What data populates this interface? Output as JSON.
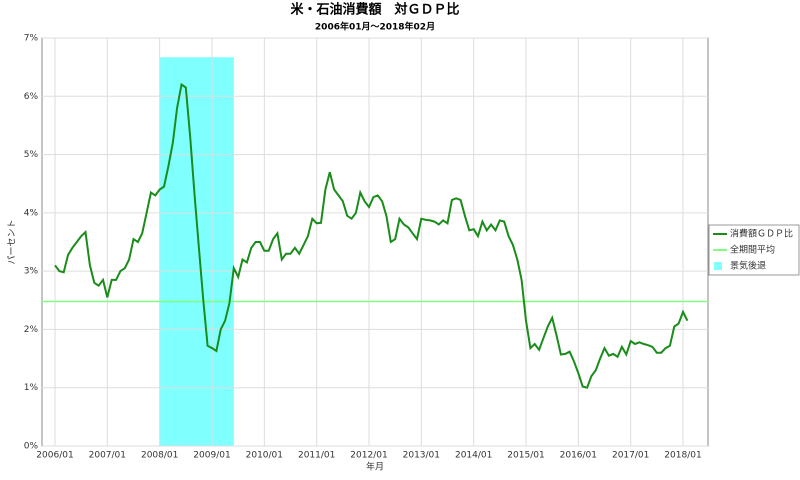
{
  "chart_data": {
    "type": "line",
    "title": "米・石油消費額　対ＧＤＰ比",
    "subtitle": "2006年01月～2018年02月",
    "xlabel": "年月",
    "ylabel": "パーセント",
    "x": [
      "2006/01",
      "2006/02",
      "2006/03",
      "2006/04",
      "2006/05",
      "2006/06",
      "2006/07",
      "2006/08",
      "2006/09",
      "2006/10",
      "2006/11",
      "2006/12",
      "2007/01",
      "2007/02",
      "2007/03",
      "2007/04",
      "2007/05",
      "2007/06",
      "2007/07",
      "2007/08",
      "2007/09",
      "2007/10",
      "2007/11",
      "2007/12",
      "2008/01",
      "2008/02",
      "2008/03",
      "2008/04",
      "2008/05",
      "2008/06",
      "2008/07",
      "2008/08",
      "2008/09",
      "2008/10",
      "2008/11",
      "2008/12",
      "2009/01",
      "2009/02",
      "2009/03",
      "2009/04",
      "2009/05",
      "2009/06",
      "2009/07",
      "2009/08",
      "2009/09",
      "2009/10",
      "2009/11",
      "2009/12",
      "2010/01",
      "2010/02",
      "2010/03",
      "2010/04",
      "2010/05",
      "2010/06",
      "2010/07",
      "2010/08",
      "2010/09",
      "2010/10",
      "2010/11",
      "2010/12",
      "2011/01",
      "2011/02",
      "2011/03",
      "2011/04",
      "2011/05",
      "2011/06",
      "2011/07",
      "2011/08",
      "2011/09",
      "2011/10",
      "2011/11",
      "2011/12",
      "2012/01",
      "2012/02",
      "2012/03",
      "2012/04",
      "2012/05",
      "2012/06",
      "2012/07",
      "2012/08",
      "2012/09",
      "2012/10",
      "2012/11",
      "2012/12",
      "2013/01",
      "2013/02",
      "2013/03",
      "2013/04",
      "2013/05",
      "2013/06",
      "2013/07",
      "2013/08",
      "2013/09",
      "2013/10",
      "2013/11",
      "2013/12",
      "2014/01",
      "2014/02",
      "2014/03",
      "2014/04",
      "2014/05",
      "2014/06",
      "2014/07",
      "2014/08",
      "2014/09",
      "2014/10",
      "2014/11",
      "2014/12",
      "2015/01",
      "2015/02",
      "2015/03",
      "2015/04",
      "2015/05",
      "2015/06",
      "2015/07",
      "2015/08",
      "2015/09",
      "2015/10",
      "2015/11",
      "2015/12",
      "2016/01",
      "2016/02",
      "2016/03",
      "2016/04",
      "2016/05",
      "2016/06",
      "2016/07",
      "2016/08",
      "2016/09",
      "2016/10",
      "2016/11",
      "2016/12",
      "2017/01",
      "2017/02",
      "2017/03",
      "2017/04",
      "2017/05",
      "2017/06",
      "2017/07",
      "2017/08",
      "2017/09",
      "2017/10",
      "2017/11",
      "2017/12",
      "2018/01",
      "2018/02"
    ],
    "series": [
      {
        "name": "消費額ＧＤＰ比",
        "color": "#1a8c1a",
        "values": [
          3.1,
          3.0,
          2.98,
          3.28,
          3.4,
          3.5,
          3.6,
          3.67,
          3.1,
          2.8,
          2.75,
          2.85,
          2.55,
          2.85,
          2.85,
          3.0,
          3.05,
          3.2,
          3.55,
          3.5,
          3.65,
          4.0,
          4.35,
          4.3,
          4.4,
          4.45,
          4.8,
          5.2,
          5.8,
          6.2,
          6.15,
          5.3,
          4.3,
          3.4,
          2.5,
          1.72,
          1.68,
          1.63,
          2.0,
          2.15,
          2.45,
          3.05,
          2.9,
          3.2,
          3.15,
          3.4,
          3.5,
          3.5,
          3.35,
          3.35,
          3.55,
          3.65,
          3.2,
          3.3,
          3.3,
          3.4,
          3.3,
          3.45,
          3.6,
          3.9,
          3.82,
          3.83,
          4.4,
          4.7,
          4.4,
          4.3,
          4.2,
          3.95,
          3.9,
          4.0,
          4.35,
          4.2,
          4.1,
          4.27,
          4.3,
          4.2,
          3.95,
          3.5,
          3.55,
          3.9,
          3.8,
          3.75,
          3.65,
          3.55,
          3.9,
          3.88,
          3.87,
          3.85,
          3.8,
          3.87,
          3.82,
          4.22,
          4.25,
          4.22,
          3.95,
          3.7,
          3.72,
          3.6,
          3.85,
          3.7,
          3.8,
          3.7,
          3.87,
          3.85,
          3.6,
          3.45,
          3.2,
          2.85,
          2.15,
          1.68,
          1.75,
          1.65,
          1.85,
          2.05,
          2.2,
          1.9,
          1.57,
          1.58,
          1.62,
          1.45,
          1.25,
          1.02,
          1.0,
          1.2,
          1.3,
          1.5,
          1.68,
          1.55,
          1.58,
          1.53,
          1.7,
          1.57,
          1.8,
          1.75,
          1.78,
          1.75,
          1.73,
          1.7,
          1.6,
          1.6,
          1.68,
          1.72,
          2.05,
          2.1,
          2.3,
          2.15
        ]
      }
    ],
    "average": {
      "name": "全期間平均",
      "color": "#80ff80",
      "value": 2.48
    },
    "recession": {
      "name": "景気後退",
      "color": "#80ffff",
      "start": "2008/01",
      "end": "2009/06",
      "value": 6.67
    },
    "ylim": [
      0,
      7
    ],
    "yticks": [
      {
        "value": 0,
        "label": "0%"
      },
      {
        "value": 1,
        "label": "1%"
      },
      {
        "value": 2,
        "label": "2%"
      },
      {
        "value": 3,
        "label": "3%"
      },
      {
        "value": 4,
        "label": "4%"
      },
      {
        "value": 5,
        "label": "5%"
      },
      {
        "value": 6,
        "label": "6%"
      },
      {
        "value": 7,
        "label": "7%"
      }
    ],
    "xticks": [
      "2006/01",
      "2007/01",
      "2008/01",
      "2009/01",
      "2010/01",
      "2011/01",
      "2012/01",
      "2013/01",
      "2014/01",
      "2015/01",
      "2016/01",
      "2017/01",
      "2018/01"
    ],
    "grid": true
  }
}
